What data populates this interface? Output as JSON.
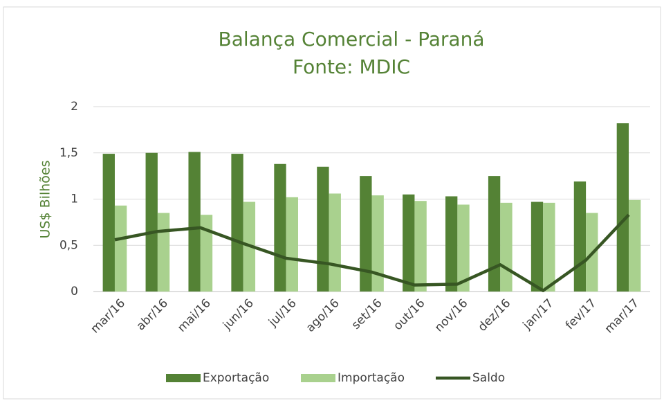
{
  "chart_data": {
    "type": "bar_line",
    "title": "Balança Comercial - Paraná",
    "subtitle": "Fonte: MDIC",
    "y_label": "US$ Bilhões",
    "categories": [
      "mar/16",
      "abr/16",
      "mai/16",
      "jun/16",
      "jul/16",
      "ago/16",
      "set/16",
      "out/16",
      "nov/16",
      "dez/16",
      "jan/17",
      "fev/17",
      "mar/17"
    ],
    "series": [
      {
        "name": "Exportação",
        "color": "#548235",
        "kind": "bar",
        "values": [
          1.49,
          1.5,
          1.51,
          1.49,
          1.38,
          1.35,
          1.25,
          1.05,
          1.03,
          1.25,
          0.97,
          1.19,
          1.82
        ]
      },
      {
        "name": "Importação",
        "color": "#a9d18e",
        "kind": "bar",
        "values": [
          0.93,
          0.85,
          0.83,
          0.97,
          1.02,
          1.06,
          1.04,
          0.98,
          0.94,
          0.96,
          0.96,
          0.85,
          0.99
        ]
      },
      {
        "name": "Saldo",
        "color": "#375623",
        "kind": "line",
        "values": [
          0.56,
          0.65,
          0.69,
          0.52,
          0.36,
          0.3,
          0.21,
          0.07,
          0.08,
          0.29,
          0.01,
          0.34,
          0.83
        ]
      }
    ],
    "ylim": [
      0,
      2
    ],
    "yticks": [
      0,
      {
        "value": 0.5,
        "label": "0,5"
      },
      1,
      {
        "value": 1.5,
        "label": "1,5"
      },
      2
    ],
    "grid": true,
    "legend": "bottom"
  }
}
